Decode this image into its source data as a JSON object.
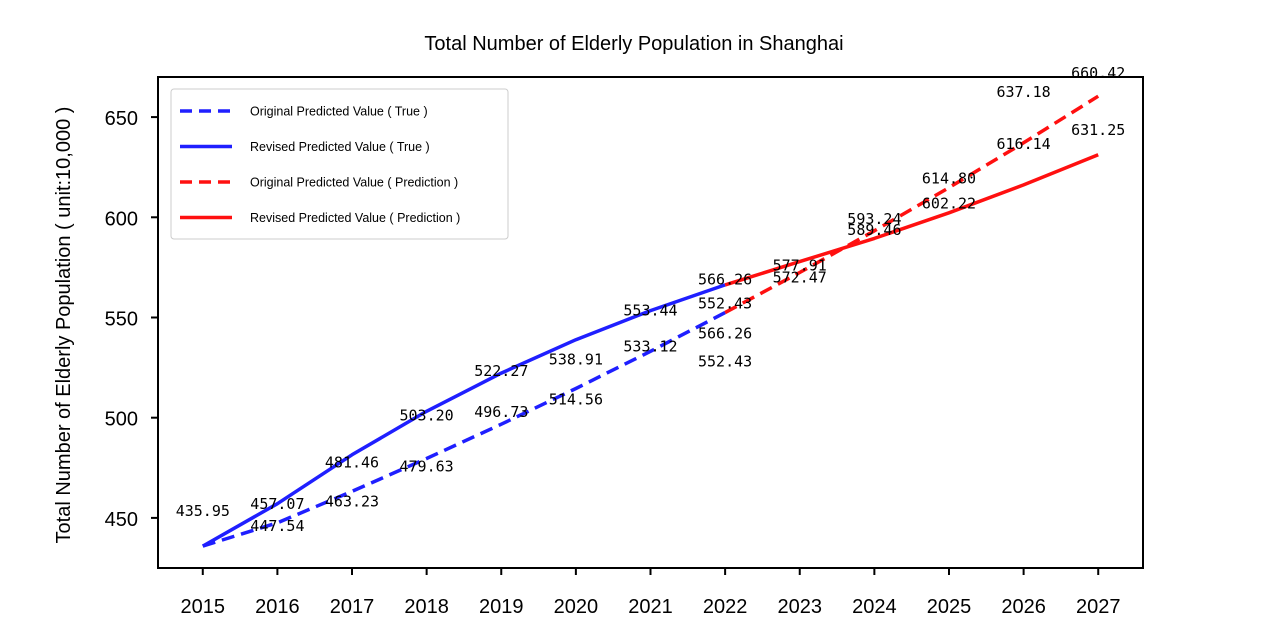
{
  "chart_data": {
    "type": "line",
    "title": "Total Number of Elderly Population in Shanghai",
    "xlabel": "",
    "ylabel": "Total Number of Elderly Population ( unit:10,000 )",
    "categories": [
      "2015",
      "2016",
      "2017",
      "2018",
      "2019",
      "2020",
      "2021",
      "2022",
      "2023",
      "2024",
      "2025",
      "2026",
      "2027"
    ],
    "x": [
      2015,
      2016,
      2017,
      2018,
      2019,
      2020,
      2021,
      2022,
      2023,
      2024,
      2025,
      2026,
      2027
    ],
    "xlim": [
      2014.4,
      2027.6
    ],
    "ylim": [
      425,
      670
    ],
    "yticks": [
      450,
      500,
      550,
      600,
      650
    ],
    "legend_position": "top-left",
    "series": [
      {
        "name": "Original Predicted Value ( True )",
        "color": "#1f1fff",
        "style": "dashed",
        "x": [
          2015,
          2016,
          2017,
          2018,
          2019,
          2020,
          2021,
          2022
        ],
        "values": [
          435.95,
          447.54,
          463.23,
          479.63,
          496.73,
          514.56,
          533.12,
          552.43
        ]
      },
      {
        "name": "Revised Predicted Value ( True )",
        "color": "#1f1fff",
        "style": "solid",
        "x": [
          2015,
          2016,
          2017,
          2018,
          2019,
          2020,
          2021,
          2022
        ],
        "values": [
          435.95,
          457.07,
          481.46,
          503.2,
          522.27,
          538.91,
          553.44,
          566.26
        ]
      },
      {
        "name": "Original Predicted Value ( Prediction )",
        "color": "#ff1010",
        "style": "dashed",
        "x": [
          2022,
          2023,
          2024,
          2025,
          2026,
          2027
        ],
        "values": [
          552.43,
          572.47,
          593.24,
          614.8,
          637.18,
          660.42
        ]
      },
      {
        "name": "Revised Predicted Value ( Prediction )",
        "color": "#ff1010",
        "style": "solid",
        "x": [
          2022,
          2023,
          2024,
          2025,
          2026,
          2027
        ],
        "values": [
          566.26,
          577.91,
          589.46,
          602.22,
          616.14,
          631.25
        ]
      }
    ],
    "annotations": [
      {
        "x": 2015,
        "y": 435.95,
        "text": "435.95",
        "dx": 0,
        "dy": -30
      },
      {
        "x": 2016,
        "y": 447.54,
        "text": "457.07",
        "dx": 0,
        "dy": -14
      },
      {
        "x": 2016,
        "y": 447.54,
        "text": "447.54",
        "dx": 0,
        "dy": 8
      },
      {
        "x": 2017,
        "y": 463.23,
        "text": "481.46",
        "dx": 0,
        "dy": -24
      },
      {
        "x": 2017,
        "y": 463.23,
        "text": "463.23",
        "dx": 0,
        "dy": 15
      },
      {
        "x": 2018,
        "y": 479.63,
        "text": "503.20",
        "dx": 0,
        "dy": -38
      },
      {
        "x": 2018,
        "y": 479.63,
        "text": "479.63",
        "dx": 0,
        "dy": 13
      },
      {
        "x": 2019,
        "y": 496.73,
        "text": "522.27",
        "dx": 0,
        "dy": -48
      },
      {
        "x": 2019,
        "y": 496.73,
        "text": "496.73",
        "dx": 0,
        "dy": -7
      },
      {
        "x": 2020,
        "y": 514.56,
        "text": "538.91",
        "dx": 0,
        "dy": -24
      },
      {
        "x": 2020,
        "y": 514.56,
        "text": "514.56",
        "dx": 0,
        "dy": 16
      },
      {
        "x": 2021,
        "y": 533.12,
        "text": "553.44",
        "dx": 0,
        "dy": -36
      },
      {
        "x": 2021,
        "y": 533.12,
        "text": "533.12",
        "dx": 0,
        "dy": 0
      },
      {
        "x": 2022,
        "y": 552.43,
        "text": "566.26",
        "dx": 0,
        "dy": -28
      },
      {
        "x": 2022,
        "y": 552.43,
        "text": "552.43",
        "dx": 0,
        "dy": -4
      },
      {
        "x": 2022,
        "y": 552.43,
        "text": "566.26",
        "dx": 0,
        "dy": 26
      },
      {
        "x": 2022,
        "y": 552.43,
        "text": "552.43",
        "dx": 0,
        "dy": 54
      },
      {
        "x": 2023,
        "y": 572.47,
        "text": "577.91",
        "dx": 0,
        "dy": -2
      },
      {
        "x": 2023,
        "y": 572.47,
        "text": "572.47",
        "dx": 0,
        "dy": 10
      },
      {
        "x": 2024,
        "y": 593.24,
        "text": "593.24",
        "dx": 0,
        "dy": -7
      },
      {
        "x": 2024,
        "y": 593.24,
        "text": "589.46",
        "dx": 0,
        "dy": 4
      },
      {
        "x": 2025,
        "y": 614.8,
        "text": "614.80",
        "dx": 0,
        "dy": -4
      },
      {
        "x": 2025,
        "y": 614.8,
        "text": "602.22",
        "dx": 0,
        "dy": 21
      },
      {
        "x": 2026,
        "y": 637.18,
        "text": "637.18",
        "dx": 0,
        "dy": -46
      },
      {
        "x": 2026,
        "y": 637.18,
        "text": "616.14",
        "dx": 0,
        "dy": 6
      },
      {
        "x": 2027,
        "y": 660.42,
        "text": "660.42",
        "dx": 0,
        "dy": -18
      },
      {
        "x": 2027,
        "y": 660.42,
        "text": "631.25",
        "dx": 0,
        "dy": 39
      }
    ]
  }
}
